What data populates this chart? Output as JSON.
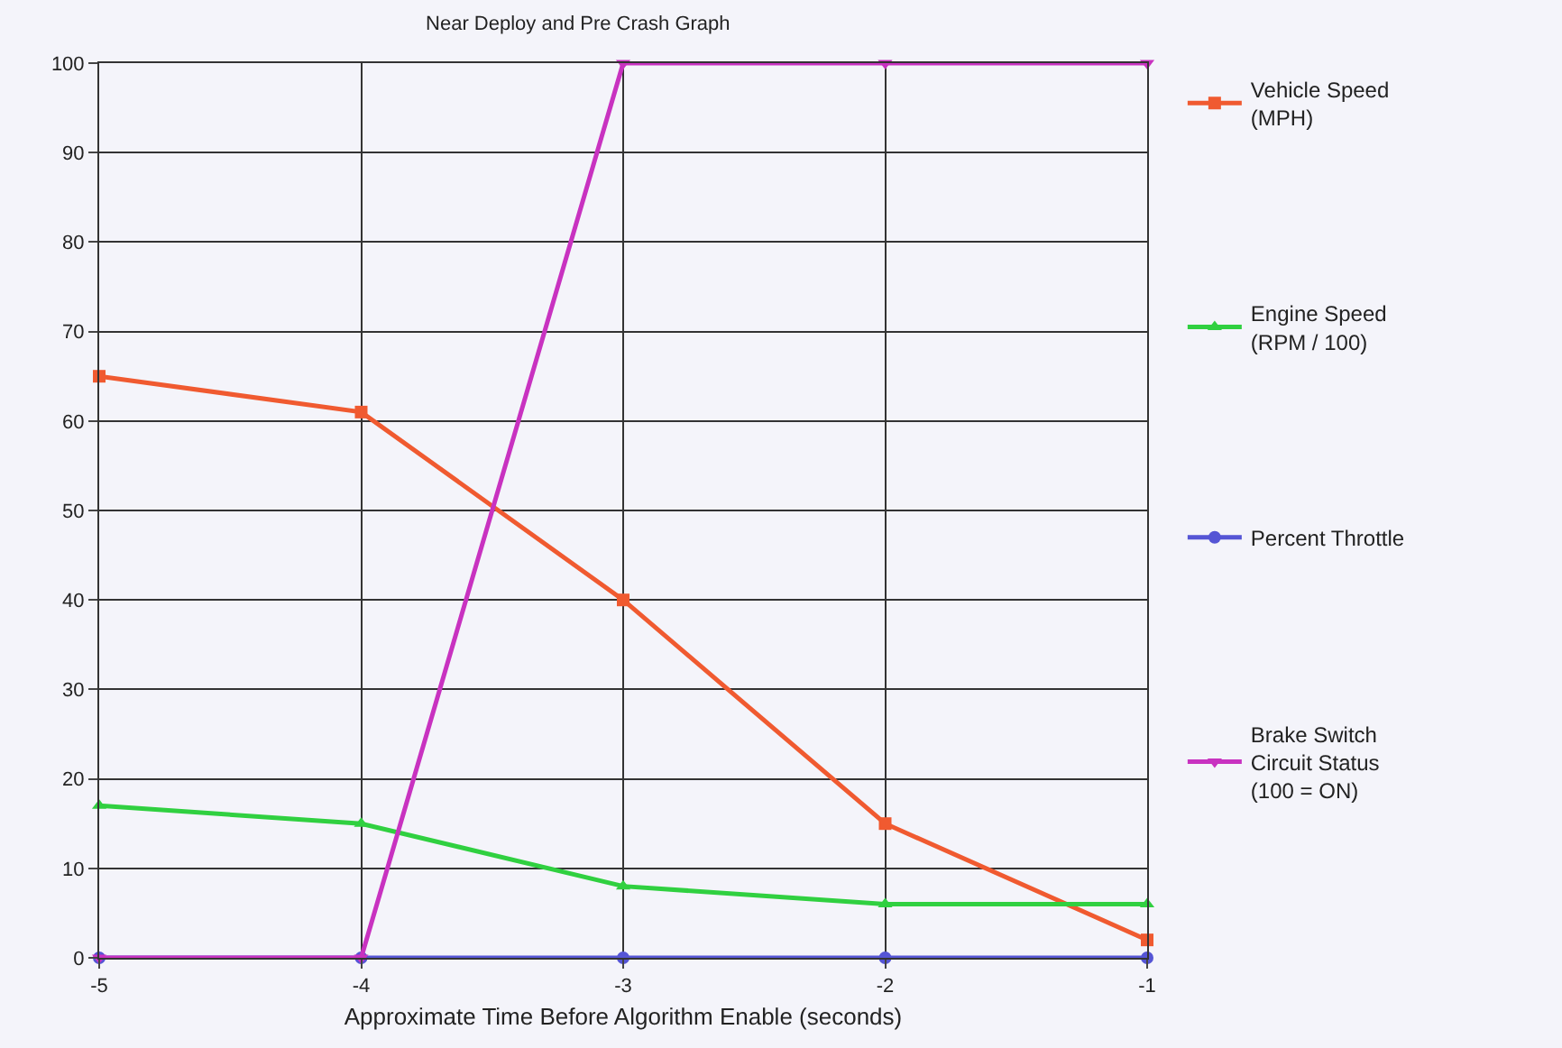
{
  "chart_data": {
    "type": "line",
    "title": "Near Deploy and Pre Crash Graph",
    "xlabel": "Approximate Time Before Algorithm Enable (seconds)",
    "x": [
      -5,
      -4,
      -3,
      -2,
      -1
    ],
    "xlim": [
      -5,
      -1
    ],
    "xticks": [
      -5,
      -4,
      -3,
      -2,
      -1
    ],
    "ylim": [
      0,
      100
    ],
    "yticks": [
      0,
      10,
      20,
      30,
      40,
      50,
      60,
      70,
      80,
      90,
      100
    ],
    "grid": true,
    "legend": "right",
    "series": [
      {
        "name": "Vehicle Speed\n(MPH)",
        "color": "#f05a30",
        "marker": "square",
        "values": [
          65,
          61,
          40,
          15,
          2
        ]
      },
      {
        "name": "Engine Speed\n(RPM / 100)",
        "color": "#30d040",
        "marker": "triangle",
        "values": [
          17,
          15,
          8,
          6,
          6
        ]
      },
      {
        "name": "Percent Throttle",
        "color": "#5555d5",
        "marker": "circle",
        "values": [
          0,
          0,
          0,
          0,
          0
        ]
      },
      {
        "name": "Brake Switch\nCircuit Status\n(100 = ON)",
        "color": "#c832c0",
        "marker": "triangle-down",
        "values": [
          0,
          0,
          100,
          100,
          100
        ]
      }
    ]
  }
}
